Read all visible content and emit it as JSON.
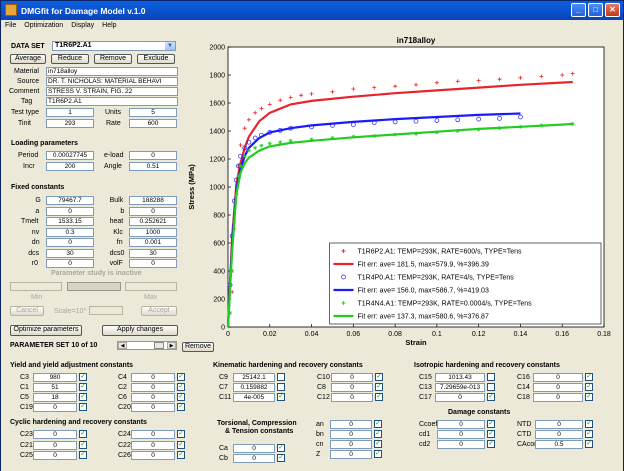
{
  "window": {
    "title": "DMGfit for Damage Model v.1.0"
  },
  "menu": [
    "File",
    "Optimization",
    "Display",
    "Help"
  ],
  "dataset": {
    "label": "DATA SET",
    "selected": "T1R6P2.A1",
    "buttons": {
      "average": "Average",
      "reduce": "Reduce",
      "remove": "Remove",
      "exclude": "Exclude"
    },
    "material_label": "Material",
    "material": "in718alloy",
    "source_label": "Source",
    "source": "DR. T. NICHOLAS: MATERIAL BEHAVI",
    "comment_label": "Comment",
    "comment": "STRESS V. STRAIN, FIG. 22",
    "tag_label": "Tag",
    "tag": "T1R6P2.A1",
    "testtype_label": "Test type",
    "testtype": "1",
    "units_label": "Units",
    "units": "5",
    "tinit_label": "Tinit",
    "tinit": "293",
    "rate_label": "Rate",
    "rate": "600"
  },
  "loading": {
    "title": "Loading parameters",
    "period_label": "Period",
    "period": "0.00027745",
    "eload_label": "e-load",
    "eload": "0",
    "incr_label": "Incr",
    "incr": "200",
    "angle_label": "Angle",
    "angle": "0.51"
  },
  "fixed": {
    "title": "Fixed constants",
    "rows": [
      {
        "l1": "G",
        "v1": "79467.7",
        "l2": "Bulk",
        "v2": "188288"
      },
      {
        "l1": "a",
        "v1": "0",
        "l2": "b",
        "v2": "0"
      },
      {
        "l1": "Tmelt",
        "v1": "1533.15",
        "l2": "heat",
        "v2": "0.252621"
      },
      {
        "l1": "nv",
        "v1": "0.3",
        "l2": "Klc",
        "v2": "1000"
      },
      {
        "l1": "dn",
        "v1": "0",
        "l2": "fn",
        "v2": "0.001"
      },
      {
        "l1": "dcs",
        "v1": "30",
        "l2": "dcs0",
        "v2": "30"
      },
      {
        "l1": "r0",
        "v1": "0",
        "l2": "volF",
        "v2": "0"
      }
    ]
  },
  "study": {
    "inactive_text": "Parameter study is inactive",
    "min_label": "Min",
    "max_label": "Max",
    "cancel": "Cancel",
    "scale": "Scale=10^",
    "accept": "Accept"
  },
  "actions": {
    "optimize": "Optimize parameters",
    "apply": "Apply changes",
    "remove": "Remove"
  },
  "paramset": {
    "label": "PARAMETER SET 10 of 10"
  },
  "yield": {
    "title": "Yield and yield adjustment constants",
    "items": [
      {
        "l": "C3",
        "v": "980",
        "c": true
      },
      {
        "l": "C4",
        "v": "0",
        "c": true
      },
      {
        "l": "C1",
        "v": "51",
        "c": true
      },
      {
        "l": "C2",
        "v": "0",
        "c": true
      },
      {
        "l": "C5",
        "v": "18",
        "c": true
      },
      {
        "l": "C6",
        "v": "0",
        "c": true
      },
      {
        "l": "C19",
        "v": "0",
        "c": true
      },
      {
        "l": "C20",
        "v": "0",
        "c": true
      }
    ]
  },
  "cyclic": {
    "title": "Cyclic hardening and recovery constants",
    "items": [
      {
        "l": "C23",
        "v": "0",
        "c": true
      },
      {
        "l": "C24",
        "v": "0",
        "c": true
      },
      {
        "l": "C21",
        "v": "0",
        "c": true
      },
      {
        "l": "C22",
        "v": "0",
        "c": true
      },
      {
        "l": "C25",
        "v": "0",
        "c": true
      },
      {
        "l": "C26",
        "v": "0",
        "c": true
      }
    ]
  },
  "kinematic": {
    "title": "Kinematic hardening and recovery constants",
    "items": [
      {
        "l": "C9",
        "v": "25142.1",
        "c": false
      },
      {
        "l": "C10",
        "v": "0",
        "c": true
      },
      {
        "l": "C7",
        "v": "0.159882",
        "c": false
      },
      {
        "l": "C8",
        "v": "0",
        "c": true
      },
      {
        "l": "C11",
        "v": "4e-005",
        "c": true
      },
      {
        "l": "C12",
        "v": "0",
        "c": true
      }
    ]
  },
  "torsional": {
    "title1": "Torsional, Compression",
    "title2": "& Tension constants",
    "items": [
      {
        "l": "Ca",
        "v": "0",
        "c": true
      },
      {
        "l": "Cb",
        "v": "0",
        "c": true
      },
      {
        "l": "an",
        "v": "0",
        "c": true
      },
      {
        "l": "bn",
        "v": "0",
        "c": true
      },
      {
        "l": "cn",
        "v": "0",
        "c": true
      },
      {
        "l": "Z",
        "v": "0",
        "c": true
      }
    ]
  },
  "isotropic": {
    "title": "Isotropic hardening and recovery constants",
    "items": [
      {
        "l": "C15",
        "v": "1013.43",
        "c": false
      },
      {
        "l": "C16",
        "v": "0",
        "c": true
      },
      {
        "l": "C13",
        "v": "7.29659e-013",
        "c": false
      },
      {
        "l": "C14",
        "v": "0",
        "c": true
      },
      {
        "l": "C17",
        "v": "0",
        "c": true
      },
      {
        "l": "C18",
        "v": "0",
        "c": true
      }
    ]
  },
  "damage": {
    "title": "Damage constants",
    "items": [
      {
        "l": "Ccoef",
        "v": "0",
        "c": true
      },
      {
        "l": "NTD",
        "v": "0",
        "c": true
      },
      {
        "l": "cd1",
        "v": "0",
        "c": true
      },
      {
        "l": "CTD",
        "v": "0",
        "c": true
      },
      {
        "l": "cd2",
        "v": "0",
        "c": true
      },
      {
        "l": "CAcon",
        "v": "0.5",
        "c": true
      }
    ]
  },
  "chart_data": {
    "type": "line",
    "title": "in718alloy",
    "xlabel": "Strain",
    "ylabel": "Stress (MPa)",
    "xlim": [
      0,
      0.18
    ],
    "ylim": [
      0,
      2000
    ],
    "xticks": [
      "0",
      "0.02",
      "0.04",
      "0.06",
      "0.08",
      "0.1",
      "0.12",
      "0.14",
      "0.16",
      "0.18"
    ],
    "yticks": [
      "0",
      "200",
      "400",
      "600",
      "800",
      "1000",
      "1200",
      "1400",
      "1600",
      "1800",
      "2000"
    ],
    "grid": false,
    "legend_position": "bottom-right",
    "series": [
      {
        "name": "T1R6P2.A1: TEMP=293K, RATE=600/s, TYPE=Tens",
        "kind": "points",
        "marker": "+",
        "color": "#e8232a",
        "x": [
          0.002,
          0.003,
          0.004,
          0.005,
          0.006,
          0.008,
          0.01,
          0.013,
          0.016,
          0.02,
          0.025,
          0.03,
          0.035,
          0.04,
          0.05,
          0.06,
          0.07,
          0.08,
          0.09,
          0.1,
          0.11,
          0.12,
          0.13,
          0.14,
          0.15,
          0.16,
          0.165
        ],
        "y": [
          250,
          700,
          950,
          1150,
          1300,
          1420,
          1480,
          1530,
          1560,
          1590,
          1620,
          1640,
          1655,
          1665,
          1680,
          1700,
          1710,
          1720,
          1730,
          1745,
          1755,
          1760,
          1770,
          1780,
          1790,
          1800,
          1810
        ]
      },
      {
        "name": "Fit err: ave= 181.5, max=579.9, %=396.39",
        "kind": "line",
        "color": "#e8232a",
        "x": [
          0,
          0.002,
          0.004,
          0.006,
          0.008,
          0.01,
          0.015,
          0.02,
          0.03,
          0.04,
          0.06,
          0.08,
          0.1,
          0.12,
          0.14,
          0.165
        ],
        "y": [
          0,
          650,
          1020,
          1170,
          1280,
          1360,
          1470,
          1530,
          1590,
          1615,
          1645,
          1670,
          1690,
          1710,
          1730,
          1750
        ]
      },
      {
        "name": "T1R4P0.A1: TEMP=293K, RATE=4/s, TYPE=Tens",
        "kind": "points",
        "marker": "o",
        "color": "#1a1aff",
        "x": [
          0.001,
          0.002,
          0.003,
          0.004,
          0.005,
          0.006,
          0.008,
          0.01,
          0.013,
          0.016,
          0.02,
          0.025,
          0.03,
          0.04,
          0.05,
          0.06,
          0.07,
          0.08,
          0.09,
          0.1,
          0.11,
          0.12,
          0.13,
          0.14
        ],
        "y": [
          300,
          650,
          900,
          1050,
          1150,
          1220,
          1280,
          1320,
          1350,
          1370,
          1390,
          1405,
          1420,
          1430,
          1440,
          1445,
          1460,
          1465,
          1470,
          1475,
          1480,
          1485,
          1490,
          1500
        ]
      },
      {
        "name": "Fit err: ave= 156.0, max=586.7, %=419.03",
        "kind": "line",
        "color": "#1a1aff",
        "x": [
          0,
          0.002,
          0.004,
          0.006,
          0.008,
          0.01,
          0.015,
          0.02,
          0.03,
          0.04,
          0.06,
          0.08,
          0.1,
          0.12,
          0.14
        ],
        "y": [
          0,
          600,
          980,
          1130,
          1220,
          1280,
          1350,
          1390,
          1420,
          1440,
          1465,
          1485,
          1500,
          1515,
          1525
        ]
      },
      {
        "name": "T1R4N4.A1: TEMP=293K, RATE=0.0004/s, TYPE=Tens",
        "kind": "points",
        "marker": "*",
        "color": "#22cc22",
        "x": [
          0.001,
          0.002,
          0.003,
          0.004,
          0.005,
          0.006,
          0.008,
          0.01,
          0.013,
          0.016,
          0.02,
          0.025,
          0.03,
          0.04,
          0.05,
          0.06,
          0.07,
          0.08,
          0.09,
          0.1,
          0.11,
          0.12,
          0.13,
          0.14,
          0.15,
          0.165
        ],
        "y": [
          100,
          400,
          750,
          950,
          1080,
          1150,
          1220,
          1260,
          1280,
          1295,
          1310,
          1320,
          1330,
          1340,
          1350,
          1360,
          1365,
          1375,
          1380,
          1390,
          1400,
          1410,
          1420,
          1430,
          1440,
          1450
        ]
      },
      {
        "name": "Fit err: ave= 137.3, max=580.6, %=376.87",
        "kind": "line",
        "color": "#22cc22",
        "x": [
          0,
          0.002,
          0.004,
          0.006,
          0.008,
          0.01,
          0.015,
          0.02,
          0.03,
          0.04,
          0.06,
          0.08,
          0.1,
          0.12,
          0.14,
          0.165
        ],
        "y": [
          0,
          550,
          950,
          1100,
          1170,
          1210,
          1260,
          1290,
          1315,
          1330,
          1355,
          1375,
          1395,
          1415,
          1430,
          1450
        ]
      }
    ]
  }
}
